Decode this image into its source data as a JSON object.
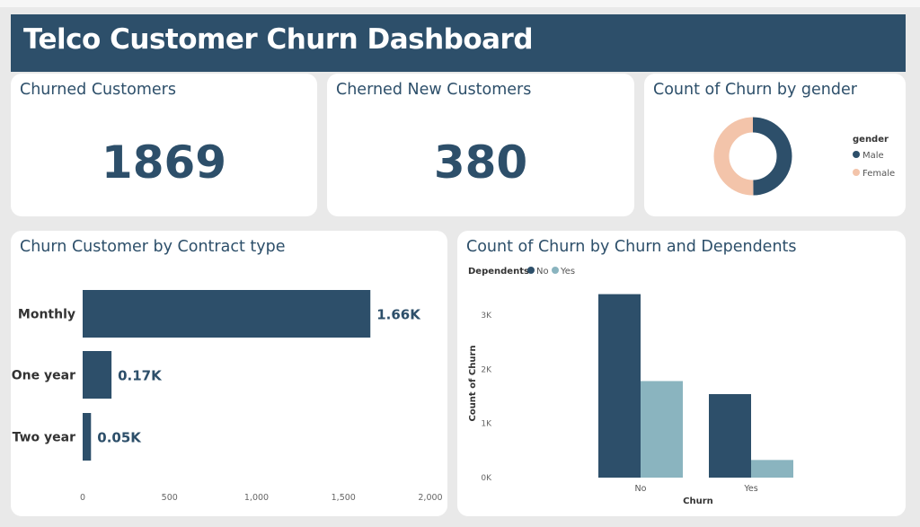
{
  "header": {
    "title": "Telco Customer Churn Dashboard"
  },
  "kpis": [
    {
      "title": "Churned Customers",
      "value": "1869"
    },
    {
      "title": "Cherned New Customers",
      "value": "380"
    }
  ],
  "gender_card": {
    "title": "Count of Churn by gender",
    "legend_title": "gender",
    "legend": [
      "Male",
      "Female"
    ]
  },
  "contract_card": {
    "title": "Churn Customer by Contract type"
  },
  "dependents_card": {
    "title": "Count of Churn by Churn and Dependents",
    "legend_title": "Dependents",
    "legend": [
      "No",
      "Yes"
    ]
  },
  "colors": {
    "primary": "#2d4f6a",
    "female": "#f3c4aa",
    "yes_series": "#8ab4bf"
  },
  "chart_data": [
    {
      "type": "pie",
      "title": "Count of Churn by gender",
      "categories": [
        "Male",
        "Female"
      ],
      "values": [
        930,
        939
      ]
    },
    {
      "type": "bar",
      "title": "Churn Customer by Contract type",
      "orientation": "horizontal",
      "categories": [
        "Monthly",
        "One year",
        "Two year"
      ],
      "values": [
        1655,
        166,
        48
      ],
      "data_labels": [
        "1.66K",
        "0.17K",
        "0.05K"
      ],
      "xlim": [
        0,
        2000
      ],
      "xticks": [
        0,
        500,
        1000,
        1500,
        2000
      ],
      "xtick_labels": [
        "0",
        "500",
        "1,000",
        "1,500",
        "2,000"
      ]
    },
    {
      "type": "bar",
      "title": "Count of Churn by Churn and Dependents",
      "categories": [
        "No",
        "Yes"
      ],
      "series": [
        {
          "name": "No",
          "values": [
            3390,
            1543
          ]
        },
        {
          "name": "Yes",
          "values": [
            1784,
            326
          ]
        }
      ],
      "xlabel": "Churn",
      "ylabel": "Count of Churn",
      "ylim": [
        0,
        3500
      ],
      "yticks": [
        0,
        1000,
        2000,
        3000
      ],
      "ytick_labels": [
        "0K",
        "1K",
        "2K",
        "3K"
      ]
    }
  ]
}
